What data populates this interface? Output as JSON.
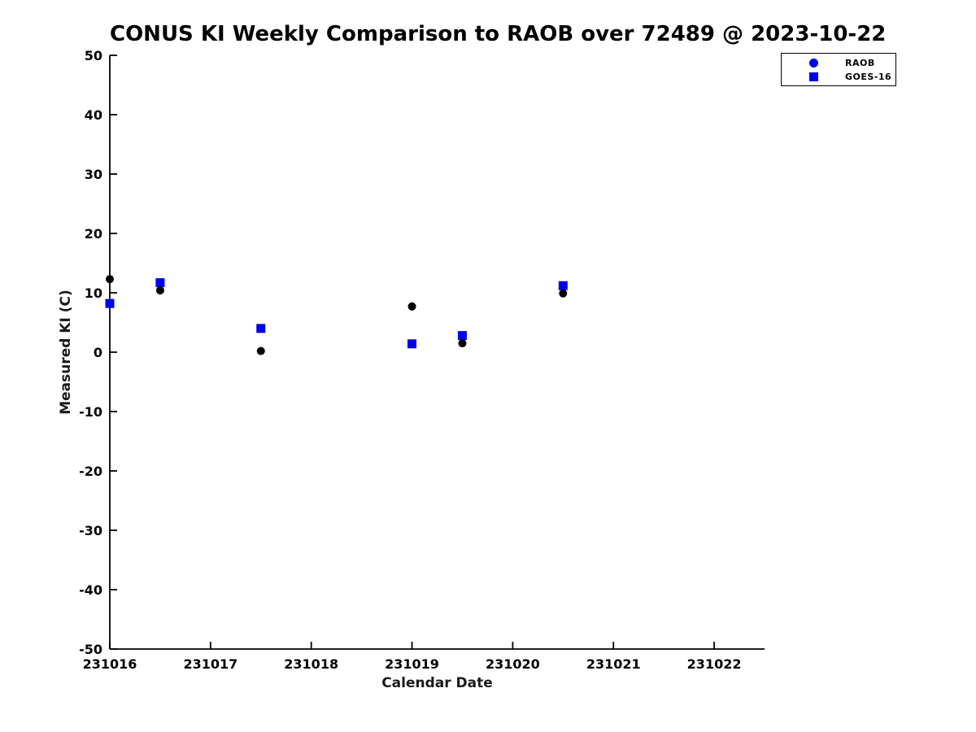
{
  "chart_data": {
    "type": "scatter",
    "title": "CONUS KI Weekly Comparison to RAOB over 72489 @ 2023-10-22",
    "xlabel": "Calendar Date",
    "ylabel": "Measured KI (C)",
    "xlim": [
      231016,
      231022.5
    ],
    "ylim": [
      -50,
      50
    ],
    "x_ticks": [
      231016,
      231017,
      231018,
      231019,
      231020,
      231021,
      231022
    ],
    "y_ticks": [
      -50,
      -40,
      -30,
      -20,
      -10,
      0,
      10,
      20,
      30,
      40,
      50
    ],
    "grid": false,
    "legend_position": "top-right",
    "x": [
      231016.0,
      231016.5,
      231017.5,
      231019.0,
      231019.5,
      231020.5
    ],
    "series": [
      {
        "name": "RAOB",
        "marker": "circle",
        "plot_color": "#000000",
        "legend_color": "#0000ee",
        "values": [
          12.3,
          10.4,
          0.2,
          7.7,
          1.5,
          9.9
        ]
      },
      {
        "name": "GOES-16",
        "marker": "square",
        "plot_color": "#0000ee",
        "legend_color": "#0000ee",
        "values": [
          8.2,
          11.7,
          4.0,
          1.4,
          2.8,
          11.2
        ]
      }
    ],
    "colors": {
      "axis": "#000000",
      "background": "#ffffff",
      "marker_blue": "#0000ee",
      "marker_black": "#000000"
    }
  }
}
